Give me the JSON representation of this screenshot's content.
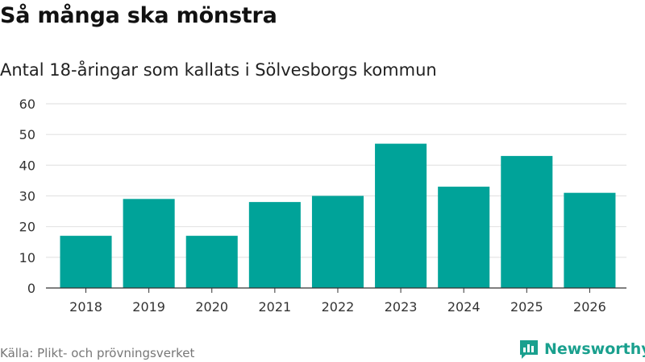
{
  "header": {
    "title": "Så många ska mönstra",
    "subtitle": "Antal 18-åringar som kallats i Sölvesborgs kommun"
  },
  "footer": {
    "source": "Källa: Plikt- och prövningsverket",
    "brand": "Newsworthy"
  },
  "colors": {
    "bar": "#00a399",
    "grid": "#e3e3e3",
    "axis": "#333333",
    "brand": "#1aa08e"
  },
  "chart_data": {
    "type": "bar",
    "title": "Så många ska mönstra",
    "subtitle": "Antal 18-åringar som kallats i Sölvesborgs kommun",
    "xlabel": "",
    "ylabel": "",
    "categories": [
      "2018",
      "2019",
      "2020",
      "2021",
      "2022",
      "2023",
      "2024",
      "2025",
      "2026"
    ],
    "values": [
      17,
      29,
      17,
      28,
      30,
      47,
      33,
      43,
      31
    ],
    "ylim": [
      0,
      60
    ],
    "yticks": [
      0,
      10,
      20,
      30,
      40,
      50,
      60
    ],
    "grid": true,
    "legend": "none"
  }
}
